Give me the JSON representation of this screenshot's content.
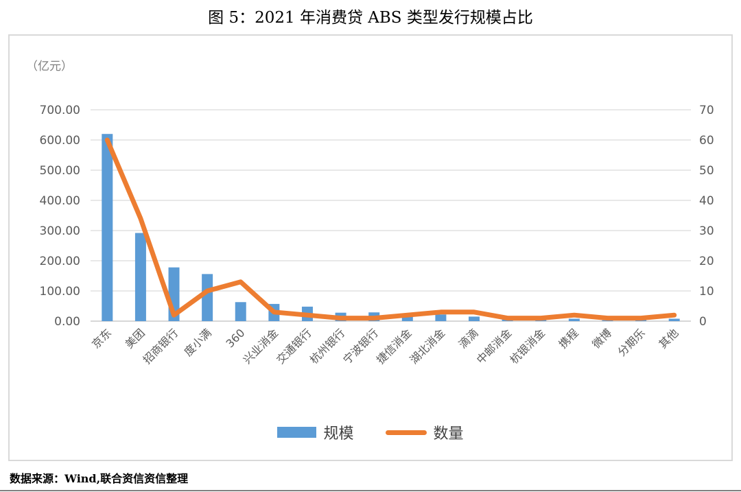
{
  "title": "图 5：2021 年消费贷 ABS 类型发行规模占比",
  "chart_data": {
    "type": "bar+line",
    "title": "图 5：2021 年消费贷 ABS 类型发行规模占比",
    "unit_label": "（亿元）",
    "categories": [
      "京东",
      "美团",
      "招商银行",
      "度小满",
      "360",
      "兴业消金",
      "交通银行",
      "杭州银行",
      "宁波银行",
      "捷信消金",
      "湖北消金",
      "滴滴",
      "中邮消金",
      "杭银消金",
      "携程",
      "微博",
      "分期乐",
      "其他"
    ],
    "series": [
      {
        "name": "规模",
        "type": "bar",
        "axis": "left",
        "color": "#5b9bd5",
        "values": [
          620,
          292,
          178,
          156,
          63,
          57,
          48,
          28,
          29,
          25,
          22,
          15,
          6,
          5,
          8,
          3,
          4,
          8
        ]
      },
      {
        "name": "数量",
        "type": "line",
        "axis": "right",
        "color": "#ed7d31",
        "values": [
          60,
          34,
          2,
          10,
          13,
          3,
          2,
          1,
          1,
          2,
          3,
          3,
          1,
          1,
          2,
          1,
          1,
          2
        ]
      }
    ],
    "left_axis": {
      "min": 0,
      "max": 700,
      "step": 100,
      "tick_labels": [
        "700.00",
        "600.00",
        "500.00",
        "400.00",
        "300.00",
        "200.00",
        "100.00",
        "0.00"
      ]
    },
    "right_axis": {
      "min": 0,
      "max": 70,
      "step": 10,
      "tick_labels": [
        "70",
        "60",
        "50",
        "40",
        "30",
        "20",
        "10",
        "0"
      ]
    },
    "grid": true,
    "legend_position": "bottom"
  },
  "legend": {
    "items": [
      {
        "label": "规模"
      },
      {
        "label": "数量"
      }
    ]
  },
  "footer": {
    "source": "数据来源：Wind,联合资信资信整理"
  },
  "colors": {
    "bar": "#5b9bd5",
    "line": "#ed7d31",
    "grid": "#d9d9d9",
    "axis_bottom": "#bfbfbf",
    "axis_text": "#595959",
    "frame_border": "#d9d9d9"
  }
}
